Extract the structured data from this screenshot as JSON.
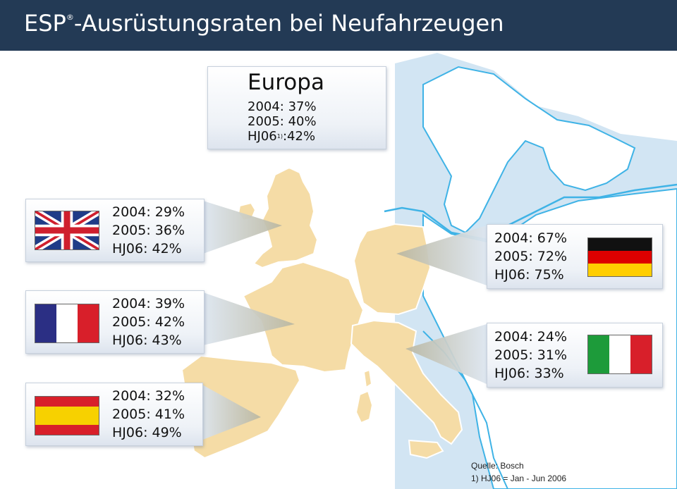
{
  "title": {
    "main": "ESP",
    "superscript": "®",
    "rest": "-Ausrüstungsraten bei Neufahrzeugen"
  },
  "europa": {
    "label": "Europa",
    "rows": [
      "2004: 37%",
      "2005: 40%"
    ],
    "hj_label": "HJ06",
    "hj_footnote": "1)",
    "hj_value": ":42%"
  },
  "countries": {
    "uk": {
      "flag": "uk-flag",
      "rows": [
        "2004: 29%",
        "2005: 36%",
        "HJ06: 42%"
      ]
    },
    "france": {
      "flag": "france-flag",
      "rows": [
        "2004: 39%",
        "2005: 42%",
        "HJ06: 43%"
      ]
    },
    "spain": {
      "flag": "spain-flag",
      "rows": [
        "2004: 32%",
        "2005: 41%",
        "HJ06: 49%"
      ]
    },
    "germany": {
      "flag": "germany-flag",
      "rows": [
        "2004: 67%",
        "2005: 72%",
        "HJ06: 75%"
      ]
    },
    "italy": {
      "flag": "italy-flag",
      "rows": [
        "2004: 24%",
        "2005: 31%",
        "HJ06: 33%"
      ]
    }
  },
  "source": {
    "line1": "Quelle: Bosch",
    "line2": "1) HJ06 = Jan - Jun 2006"
  },
  "colors": {
    "header": "#233a55",
    "sea": "#cfe3f2",
    "land_other": "#ffffff",
    "highlight_land": "#f5dca6",
    "coast": "#3fb3e6"
  }
}
